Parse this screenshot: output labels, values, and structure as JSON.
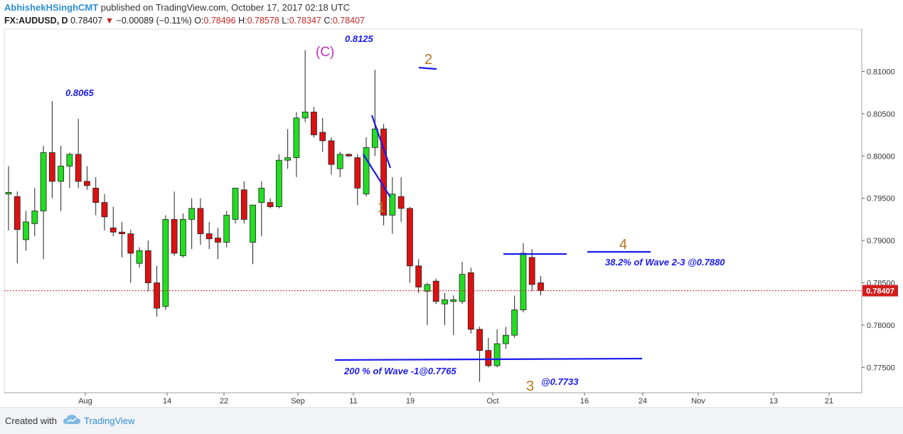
{
  "header": {
    "author": "AbhishekHSinghCMT",
    "published": " published on TradingView.com, October 17, 2017 02:18 UTC",
    "symbol": "FX:AUDUSD, D",
    "last": "0.78407",
    "change": "−0.00089 (−0.11%)",
    "o_label": "O:",
    "o": "0.78496",
    "h_label": "H:",
    "h": "0.78578",
    "l_label": "L:",
    "l": "0.78347",
    "c_label": "C:",
    "c": "0.78407"
  },
  "footer": {
    "created_with": "Created with",
    "brand": "TradingView"
  },
  "colors": {
    "up": "#22dd22",
    "down": "#dd1111",
    "annot_blue": "#1a1aee",
    "wave_orange": "#b8741a",
    "wave_c": "#c02dbd",
    "price_line": "#cc2222"
  },
  "chart_data": {
    "type": "candlestick",
    "ylim": [
      0.772,
      0.815
    ],
    "y_ticks": [
      0.775,
      0.78,
      0.785,
      0.79,
      0.795,
      0.8,
      0.805,
      0.81
    ],
    "y_tick_labels": [
      "0.77500",
      "0.78000",
      "0.78500",
      "0.79000",
      "0.79500",
      "0.80000",
      "0.80500",
      "0.81000"
    ],
    "x_tick_labels": [
      "Aug",
      "14",
      "22",
      "Sep",
      "11",
      "19",
      "Oct",
      "16",
      "24",
      "Nov",
      "13",
      "21"
    ],
    "current_price_label": "0.78407",
    "current_price": 0.78407,
    "candles": [
      {
        "o": 0.7955,
        "h": 0.7988,
        "l": 0.7912,
        "c": 0.7957
      },
      {
        "o": 0.7952,
        "h": 0.7958,
        "l": 0.7873,
        "c": 0.7913
      },
      {
        "o": 0.7901,
        "h": 0.7935,
        "l": 0.7888,
        "c": 0.7922
      },
      {
        "o": 0.792,
        "h": 0.7962,
        "l": 0.7905,
        "c": 0.7935
      },
      {
        "o": 0.7935,
        "h": 0.8012,
        "l": 0.7878,
        "c": 0.8004
      },
      {
        "o": 0.8004,
        "h": 0.8065,
        "l": 0.795,
        "c": 0.797
      },
      {
        "o": 0.797,
        "h": 0.8012,
        "l": 0.7935,
        "c": 0.7988
      },
      {
        "o": 0.7988,
        "h": 0.8004,
        "l": 0.7962,
        "c": 0.8002
      },
      {
        "o": 0.8002,
        "h": 0.8044,
        "l": 0.7962,
        "c": 0.797
      },
      {
        "o": 0.797,
        "h": 0.7988,
        "l": 0.796,
        "c": 0.7965
      },
      {
        "o": 0.7962,
        "h": 0.7975,
        "l": 0.793,
        "c": 0.7945
      },
      {
        "o": 0.7945,
        "h": 0.7955,
        "l": 0.7912,
        "c": 0.7928
      },
      {
        "o": 0.7915,
        "h": 0.794,
        "l": 0.7905,
        "c": 0.791
      },
      {
        "o": 0.791,
        "h": 0.7922,
        "l": 0.788,
        "c": 0.7908
      },
      {
        "o": 0.7908,
        "h": 0.7913,
        "l": 0.785,
        "c": 0.7885
      },
      {
        "o": 0.7873,
        "h": 0.7892,
        "l": 0.7868,
        "c": 0.7888
      },
      {
        "o": 0.7888,
        "h": 0.79,
        "l": 0.784,
        "c": 0.785
      },
      {
        "o": 0.785,
        "h": 0.787,
        "l": 0.781,
        "c": 0.782
      },
      {
        "o": 0.7822,
        "h": 0.793,
        "l": 0.7818,
        "c": 0.7925
      },
      {
        "o": 0.7925,
        "h": 0.7958,
        "l": 0.7882,
        "c": 0.7885
      },
      {
        "o": 0.7882,
        "h": 0.7932,
        "l": 0.788,
        "c": 0.7925
      },
      {
        "o": 0.7925,
        "h": 0.795,
        "l": 0.789,
        "c": 0.7938
      },
      {
        "o": 0.7938,
        "h": 0.795,
        "l": 0.7895,
        "c": 0.7908
      },
      {
        "o": 0.7908,
        "h": 0.7922,
        "l": 0.789,
        "c": 0.7902
      },
      {
        "o": 0.7903,
        "h": 0.7915,
        "l": 0.7878,
        "c": 0.7898
      },
      {
        "o": 0.7898,
        "h": 0.7935,
        "l": 0.7892,
        "c": 0.793
      },
      {
        "o": 0.7925,
        "h": 0.7962,
        "l": 0.792,
        "c": 0.7962
      },
      {
        "o": 0.796,
        "h": 0.797,
        "l": 0.792,
        "c": 0.7925
      },
      {
        "o": 0.7898,
        "h": 0.794,
        "l": 0.7872,
        "c": 0.7942
      },
      {
        "o": 0.7945,
        "h": 0.797,
        "l": 0.7905,
        "c": 0.7962
      },
      {
        "o": 0.7945,
        "h": 0.795,
        "l": 0.7938,
        "c": 0.794
      },
      {
        "o": 0.794,
        "h": 0.8002,
        "l": 0.7938,
        "c": 0.7995
      },
      {
        "o": 0.7995,
        "h": 0.8032,
        "l": 0.7985,
        "c": 0.7998
      },
      {
        "o": 0.7998,
        "h": 0.8052,
        "l": 0.7975,
        "c": 0.8045
      },
      {
        "o": 0.8045,
        "h": 0.8125,
        "l": 0.804,
        "c": 0.8052
      },
      {
        "o": 0.8052,
        "h": 0.8058,
        "l": 0.8022,
        "c": 0.8025
      },
      {
        "o": 0.8028,
        "h": 0.8045,
        "l": 0.8005,
        "c": 0.8018
      },
      {
        "o": 0.8018,
        "h": 0.8022,
        "l": 0.7978,
        "c": 0.799
      },
      {
        "o": 0.7985,
        "h": 0.8005,
        "l": 0.7975,
        "c": 0.8002
      },
      {
        "o": 0.8002,
        "h": 0.8003,
        "l": 0.7999,
        "c": 0.8
      },
      {
        "o": 0.7998,
        "h": 0.8002,
        "l": 0.7942,
        "c": 0.7962
      },
      {
        "o": 0.7955,
        "h": 0.8022,
        "l": 0.7952,
        "c": 0.801
      },
      {
        "o": 0.801,
        "h": 0.8102,
        "l": 0.8,
        "c": 0.8032
      },
      {
        "o": 0.8032,
        "h": 0.8038,
        "l": 0.7918,
        "c": 0.793
      },
      {
        "o": 0.793,
        "h": 0.7975,
        "l": 0.7908,
        "c": 0.7955
      },
      {
        "o": 0.7952,
        "h": 0.7975,
        "l": 0.7922,
        "c": 0.7938
      },
      {
        "o": 0.7938,
        "h": 0.794,
        "l": 0.785,
        "c": 0.787
      },
      {
        "o": 0.787,
        "h": 0.7878,
        "l": 0.7838,
        "c": 0.7845
      },
      {
        "o": 0.784,
        "h": 0.785,
        "l": 0.78,
        "c": 0.7848
      },
      {
        "o": 0.7852,
        "h": 0.7855,
        "l": 0.7825,
        "c": 0.7828
      },
      {
        "o": 0.7825,
        "h": 0.7838,
        "l": 0.78,
        "c": 0.783
      },
      {
        "o": 0.7828,
        "h": 0.7835,
        "l": 0.7788,
        "c": 0.783
      },
      {
        "o": 0.7828,
        "h": 0.7875,
        "l": 0.7825,
        "c": 0.786
      },
      {
        "o": 0.7862,
        "h": 0.7868,
        "l": 0.779,
        "c": 0.7795
      },
      {
        "o": 0.7795,
        "h": 0.7798,
        "l": 0.7733,
        "c": 0.777
      },
      {
        "o": 0.777,
        "h": 0.7785,
        "l": 0.775,
        "c": 0.7752
      },
      {
        "o": 0.7752,
        "h": 0.7795,
        "l": 0.775,
        "c": 0.7778
      },
      {
        "o": 0.7778,
        "h": 0.7798,
        "l": 0.7772,
        "c": 0.7788
      },
      {
        "o": 0.7788,
        "h": 0.7835,
        "l": 0.7785,
        "c": 0.7818
      },
      {
        "o": 0.7818,
        "h": 0.7897,
        "l": 0.7815,
        "c": 0.7885
      },
      {
        "o": 0.788,
        "h": 0.789,
        "l": 0.784,
        "c": 0.7848
      },
      {
        "o": 0.785,
        "h": 0.7858,
        "l": 0.7835,
        "c": 0.7841
      }
    ],
    "annotations": {
      "high_8065": "0.8065",
      "high_8125": "0.8125",
      "wave_c": "(C)",
      "wave_1": "1",
      "wave_2": "2",
      "wave_3": "3",
      "wave_4": "4",
      "fib_382": "38.2% of Wave 2-3 @0.7880",
      "ext_200": "200 % of Wave -1@0.7765",
      "low_7733": "@0.7733"
    }
  }
}
